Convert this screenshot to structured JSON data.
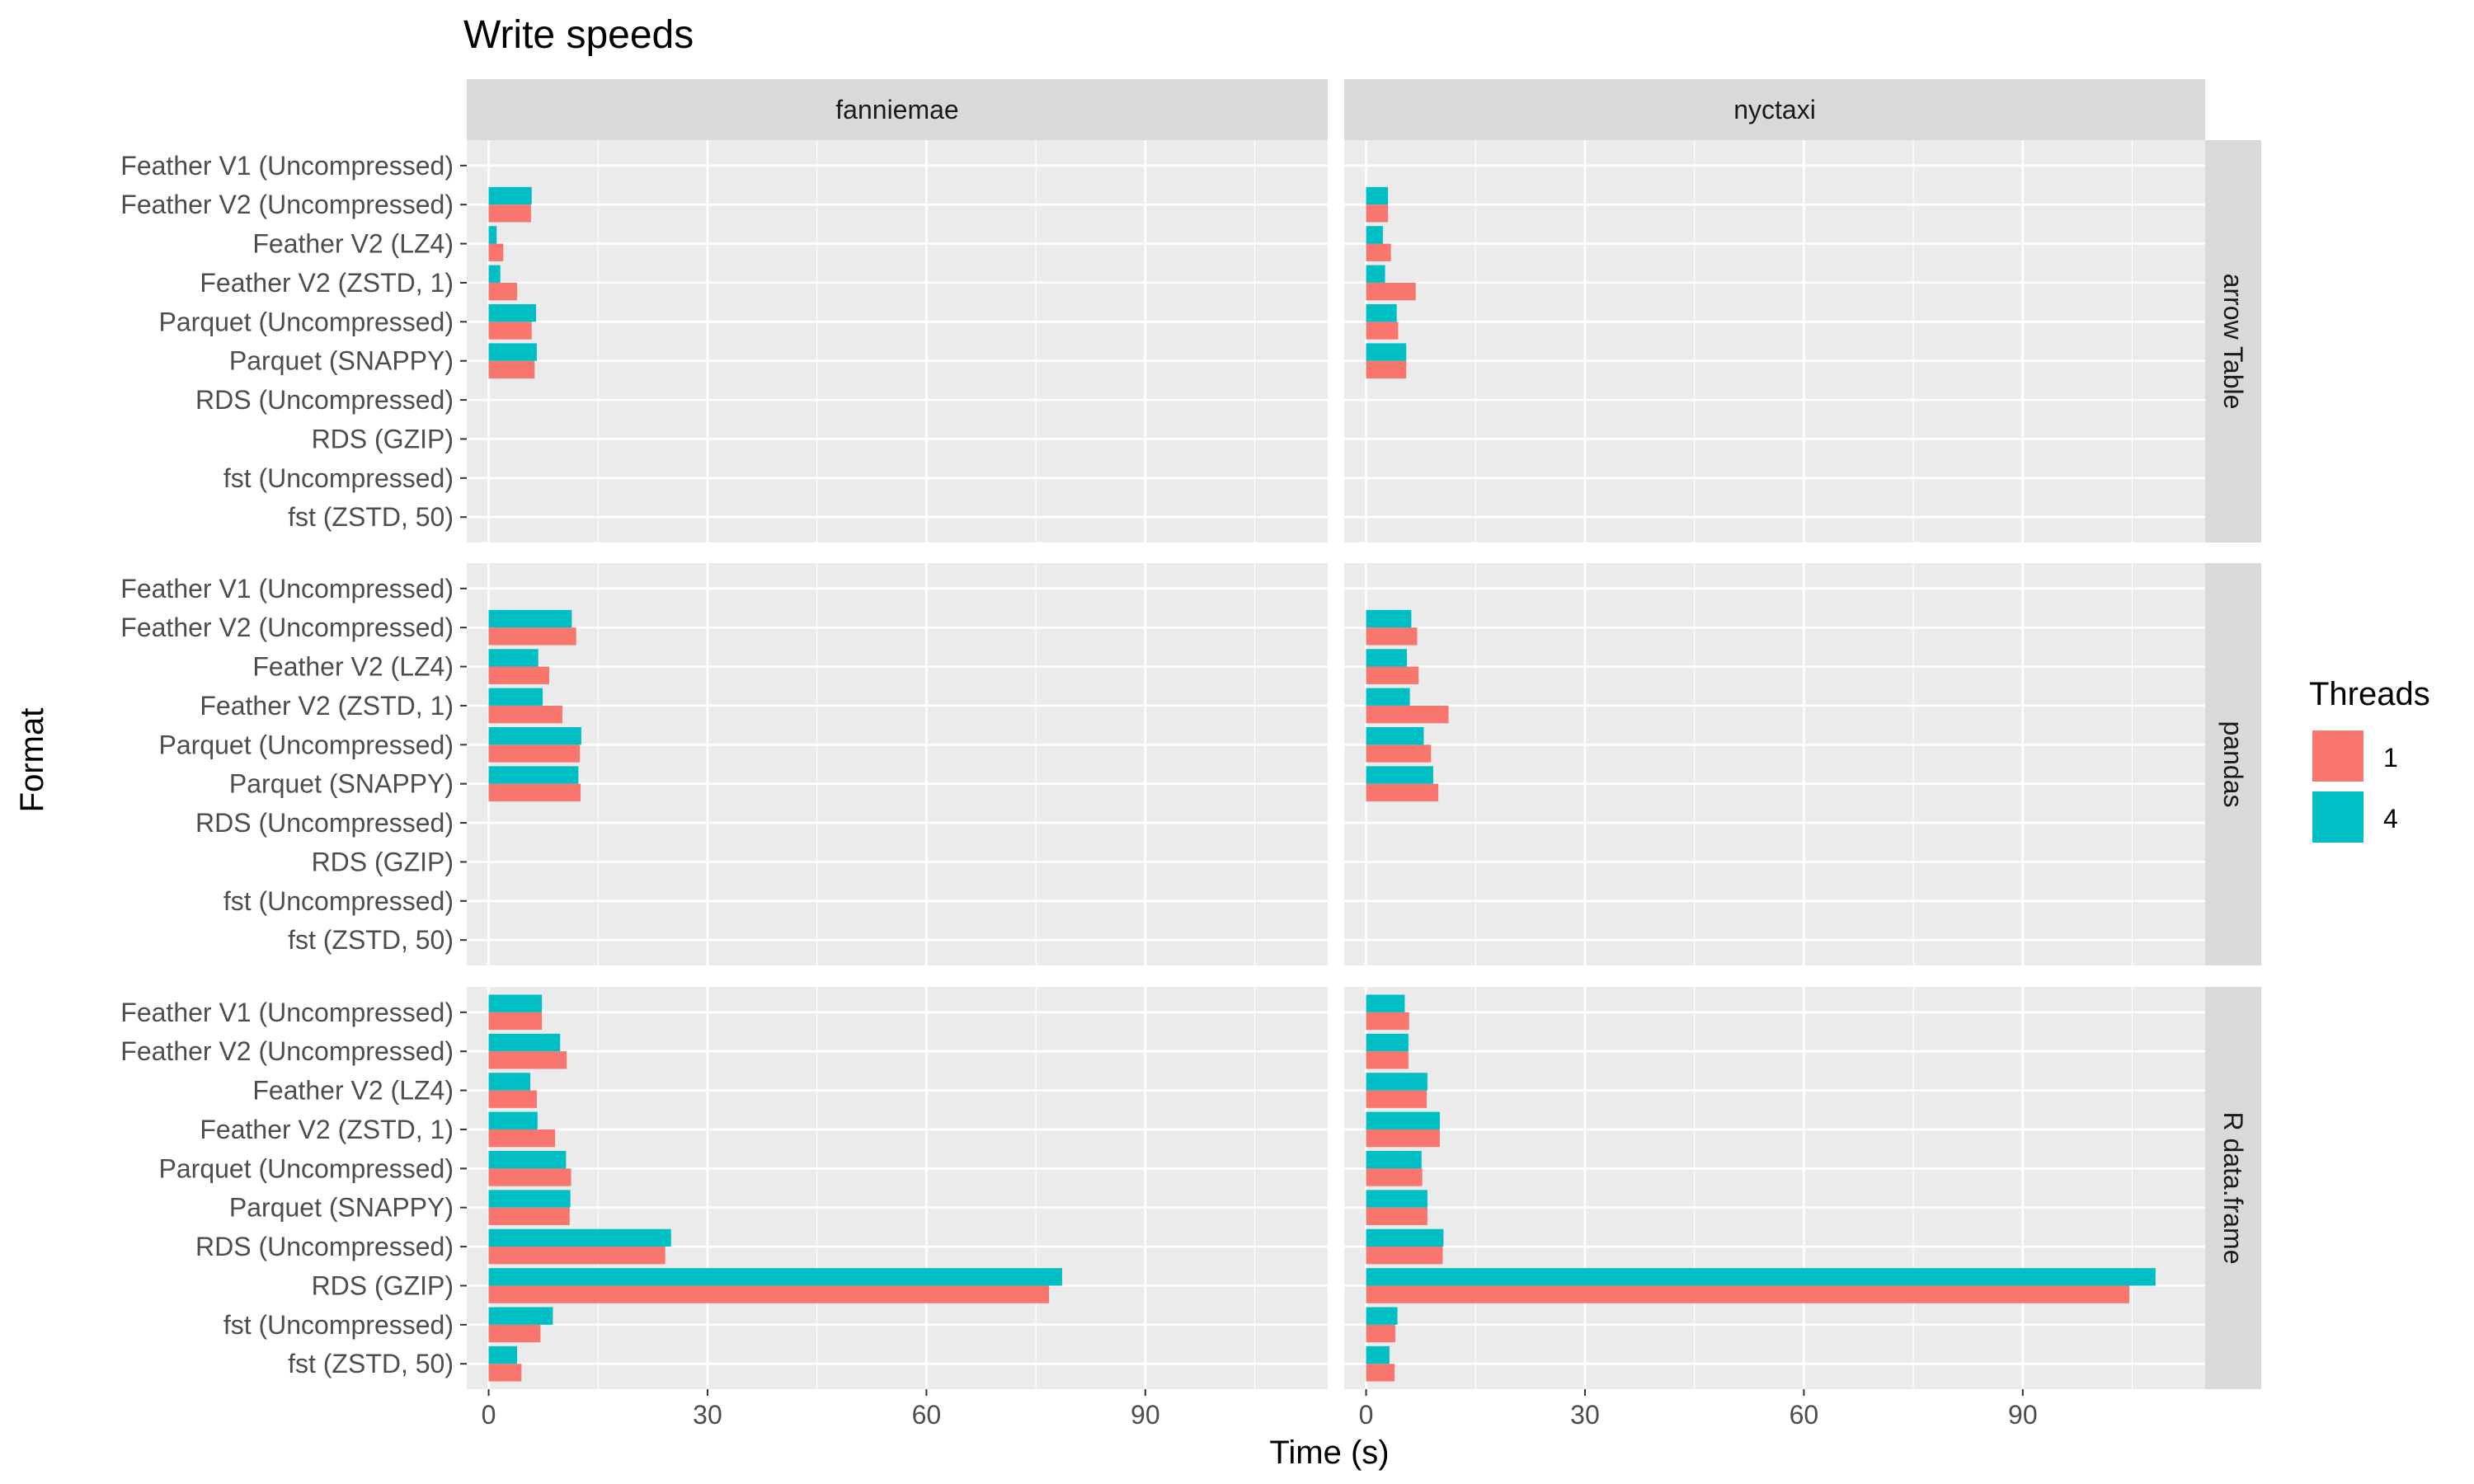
{
  "chart_data": {
    "type": "bar",
    "orientation": "horizontal",
    "title": "Write speeds",
    "xlabel": "Time (s)",
    "ylabel": "Format",
    "xlim": [
      -3,
      115
    ],
    "x_ticks": [
      0,
      30,
      60,
      90
    ],
    "grid": true,
    "legend": {
      "title": "Threads",
      "position": "right",
      "entries": [
        {
          "label": "1",
          "color": "#F8766D"
        },
        {
          "label": "4",
          "color": "#00BFC4"
        }
      ]
    },
    "facet_columns": [
      "fanniemae",
      "nyctaxi"
    ],
    "facet_rows": [
      "arrow Table",
      "pandas",
      "R data.frame"
    ],
    "categories": [
      "Feather V1 (Uncompressed)",
      "Feather V2 (Uncompressed)",
      "Feather V2 (LZ4)",
      "Feather V2 (ZSTD, 1)",
      "Parquet (Uncompressed)",
      "Parquet (SNAPPY)",
      "RDS (Uncompressed)",
      "RDS (GZIP)",
      "fst (Uncompressed)",
      "fst (ZSTD, 50)"
    ],
    "panels": [
      {
        "row": "arrow Table",
        "col": "fanniemae",
        "series": [
          {
            "name": "1",
            "values": [
              null,
              5.8,
              2.0,
              3.9,
              5.9,
              6.3,
              null,
              null,
              null,
              null
            ]
          },
          {
            "name": "4",
            "values": [
              null,
              5.9,
              1.1,
              1.6,
              6.5,
              6.6,
              null,
              null,
              null,
              null
            ]
          }
        ]
      },
      {
        "row": "arrow Table",
        "col": "nyctaxi",
        "series": [
          {
            "name": "1",
            "values": [
              null,
              3.0,
              3.4,
              6.8,
              4.4,
              5.5,
              null,
              null,
              null,
              null
            ]
          },
          {
            "name": "4",
            "values": [
              null,
              3.0,
              2.3,
              2.6,
              4.2,
              5.5,
              null,
              null,
              null,
              null
            ]
          }
        ]
      },
      {
        "row": "pandas",
        "col": "fanniemae",
        "series": [
          {
            "name": "1",
            "values": [
              null,
              12.0,
              8.3,
              10.1,
              12.5,
              12.6,
              null,
              null,
              null,
              null
            ]
          },
          {
            "name": "4",
            "values": [
              null,
              11.4,
              6.8,
              7.4,
              12.7,
              12.3,
              null,
              null,
              null,
              null
            ]
          }
        ]
      },
      {
        "row": "pandas",
        "col": "nyctaxi",
        "series": [
          {
            "name": "1",
            "values": [
              null,
              7.0,
              7.2,
              11.3,
              8.9,
              9.9,
              null,
              null,
              null,
              null
            ]
          },
          {
            "name": "4",
            "values": [
              null,
              6.2,
              5.6,
              6.0,
              7.9,
              9.2,
              null,
              null,
              null,
              null
            ]
          }
        ]
      },
      {
        "row": "R data.frame",
        "col": "fanniemae",
        "series": [
          {
            "name": "1",
            "values": [
              7.3,
              10.7,
              6.6,
              9.1,
              11.3,
              11.1,
              24.2,
              76.8,
              7.1,
              4.5
            ]
          },
          {
            "name": "4",
            "values": [
              7.3,
              9.8,
              5.7,
              6.7,
              10.6,
              11.2,
              25.0,
              78.6,
              8.8,
              3.9
            ]
          }
        ]
      },
      {
        "row": "R data.frame",
        "col": "nyctaxi",
        "series": [
          {
            "name": "1",
            "values": [
              5.9,
              5.8,
              8.3,
              10.1,
              7.7,
              8.4,
              10.5,
              104.6,
              4.0,
              3.9
            ]
          },
          {
            "name": "4",
            "values": [
              5.3,
              5.8,
              8.4,
              10.1,
              7.6,
              8.4,
              10.6,
              108.2,
              4.3,
              3.2
            ]
          }
        ]
      }
    ]
  }
}
